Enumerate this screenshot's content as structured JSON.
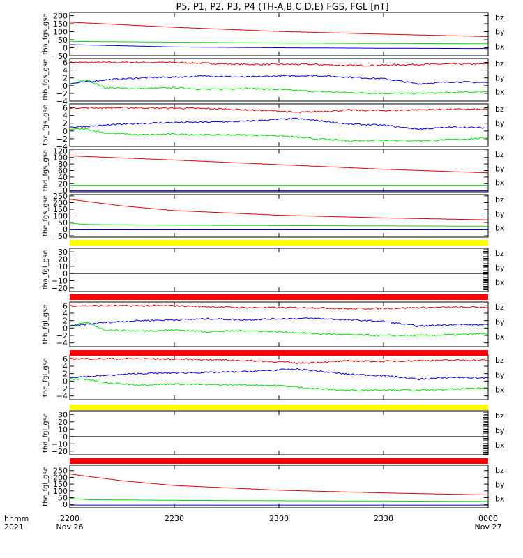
{
  "chart_data": {
    "type": "line",
    "title": "P5, P1, P2, P3, P4 (TH-A,B,C,D,E) FGS, FGL [nT]",
    "x_axis": {
      "title_lines": [
        "hhmm",
        "2021"
      ],
      "tick_labels": [
        "2200",
        "2230",
        "2300",
        "2330",
        "0000"
      ],
      "tick_sublabels": [
        "Nov 26",
        "",
        "",
        "",
        "Nov 27"
      ],
      "range": [
        "2021-11-26 22:00",
        "2021-11-27 00:00"
      ]
    },
    "legend_labels": [
      "bz",
      "by",
      "bx"
    ],
    "colors": {
      "bz": "#e00000",
      "by": "#00e000",
      "bx": "#0000e0",
      "yellow_bar": "#ffff00",
      "red_bar": "#ff0000"
    },
    "panels": [
      {
        "id": "tha_fgs_gse",
        "ylabel": "tha_fgs_gse",
        "ylim": [
          -50,
          220
        ],
        "yticks": [
          "−50",
          "0",
          "50",
          "100",
          "150",
          "200"
        ],
        "bar": "",
        "series": [
          {
            "name": "bz",
            "x": [
              0,
              30,
              60,
              90,
              120
            ],
            "y": [
              160,
              128,
              102,
              85,
              70
            ]
          },
          {
            "name": "by",
            "x": [
              0,
              30,
              60,
              90,
              120
            ],
            "y": [
              40,
              35,
              30,
              27,
              25
            ]
          },
          {
            "name": "bx",
            "x": [
              0,
              30,
              60,
              90,
              120
            ],
            "y": [
              20,
              5,
              0,
              -3,
              -5
            ]
          }
        ]
      },
      {
        "id": "thb_fgs_gse",
        "ylabel": "thb_fgs_gse",
        "ylim": [
          -4,
          7
        ],
        "yticks": [
          "−4",
          "−2",
          "0",
          "2",
          "4",
          "6"
        ],
        "bar": "",
        "series": [
          {
            "name": "bz",
            "x": [
              0,
              10,
              30,
              50,
              60,
              70,
              80,
              90,
              100,
              110,
              120
            ],
            "y": [
              6,
              6,
              6,
              5.5,
              5.5,
              5.5,
              5.2,
              5.3,
              5.5,
              5.6,
              5.6
            ]
          },
          {
            "name": "by",
            "x": [
              0,
              5,
              10,
              20,
              30,
              40,
              50,
              60,
              70,
              80,
              90,
              100,
              110,
              120
            ],
            "y": [
              0.5,
              1.5,
              -0.5,
              -0.8,
              -0.5,
              -1,
              -0.7,
              -1,
              -1.5,
              -1.8,
              -2,
              -2,
              -1.8,
              -1.5
            ]
          },
          {
            "name": "bx",
            "x": [
              0,
              5,
              10,
              20,
              30,
              40,
              50,
              60,
              70,
              80,
              90,
              100,
              110,
              120
            ],
            "y": [
              0.5,
              1,
              1.5,
              2,
              2.2,
              2.5,
              2.2,
              2.5,
              2.6,
              2.2,
              1.8,
              0.5,
              1,
              0.8
            ]
          }
        ]
      },
      {
        "id": "thc_fgs_gse",
        "ylabel": "thc_fgs_gse",
        "ylim": [
          -4,
          7
        ],
        "yticks": [
          "−4",
          "−2",
          "0",
          "2",
          "4",
          "6"
        ],
        "bar": "",
        "series": [
          {
            "name": "bz",
            "x": [
              0,
              20,
              40,
              60,
              65,
              70,
              80,
              90,
              100,
              110,
              120
            ],
            "y": [
              6,
              6,
              5.8,
              5.2,
              4.8,
              5,
              5.4,
              5.3,
              5.5,
              5.6,
              5.6
            ]
          },
          {
            "name": "by",
            "x": [
              0,
              5,
              10,
              20,
              30,
              40,
              50,
              60,
              70,
              80,
              90,
              100,
              110,
              120
            ],
            "y": [
              0.5,
              0.5,
              -0.5,
              -1,
              -0.8,
              -1,
              -1,
              -1.2,
              -2,
              -2.5,
              -2.3,
              -2.5,
              -2.2,
              -1.8
            ]
          },
          {
            "name": "bx",
            "x": [
              0,
              5,
              10,
              20,
              30,
              40,
              50,
              60,
              65,
              70,
              80,
              90,
              100,
              110,
              120
            ],
            "y": [
              1,
              1.2,
              1.5,
              2,
              2.2,
              2.3,
              2.5,
              3,
              3.2,
              2.8,
              1.8,
              1.5,
              0.5,
              1,
              0.8
            ]
          }
        ]
      },
      {
        "id": "thd_fgs_gse",
        "ylabel": "thd_fgs_gse",
        "ylim": [
          -5,
          125
        ],
        "yticks": [
          "0",
          "20",
          "40",
          "60",
          "80",
          "100",
          "120"
        ],
        "bar": "",
        "series": [
          {
            "name": "bz",
            "x": [
              0,
              30,
              60,
              90,
              120
            ],
            "y": [
              105,
              92,
              78,
              64,
              53
            ]
          },
          {
            "name": "by",
            "x": [
              0,
              30,
              60,
              90,
              120
            ],
            "y": [
              15,
              15,
              15,
              15,
              15
            ]
          },
          {
            "name": "bx",
            "x": [
              0,
              30,
              60,
              90,
              120
            ],
            "y": [
              -2,
              -2,
              -2,
              -2,
              -2
            ]
          }
        ]
      },
      {
        "id": "the_fgs_gse",
        "ylabel": "the_fgs_gse",
        "ylim": [
          -60,
          260
        ],
        "yticks": [
          "−50",
          "0",
          "50",
          "100",
          "150",
          "200",
          "250"
        ],
        "bar": "",
        "series": [
          {
            "name": "bz",
            "x": [
              0,
              15,
              30,
              60,
              90,
              120
            ],
            "y": [
              225,
              175,
              140,
              105,
              85,
              70
            ]
          },
          {
            "name": "by",
            "x": [
              0,
              5,
              30,
              60,
              90,
              120
            ],
            "y": [
              45,
              35,
              30,
              27,
              25,
              22
            ]
          },
          {
            "name": "bx",
            "x": [
              0,
              30,
              60,
              90,
              120
            ],
            "y": [
              -5,
              -5,
              -5,
              -5,
              -5
            ]
          }
        ]
      },
      {
        "id": "tha_fgl_gse",
        "ylabel": "tha_fgl_gse",
        "ylim": [
          -25,
          35
        ],
        "yticks": [
          "−20",
          "−10",
          "0",
          "10",
          "20",
          "30"
        ],
        "bar": "yellow",
        "series": []
      },
      {
        "id": "thb_fgl_gse",
        "ylabel": "thb_fgl_gse",
        "ylim": [
          -5,
          7
        ],
        "yticks": [
          "−4",
          "−2",
          "0",
          "2",
          "4",
          "6"
        ],
        "bar": "red",
        "series": [
          {
            "name": "bz",
            "x": [
              0,
              10,
              30,
              50,
              60,
              70,
              80,
              90,
              100,
              110,
              120
            ],
            "y": [
              6,
              6,
              6,
              5.5,
              5.5,
              5.5,
              5.2,
              5.3,
              5.5,
              5.6,
              5.6
            ]
          },
          {
            "name": "by",
            "x": [
              0,
              5,
              10,
              20,
              30,
              40,
              50,
              60,
              70,
              80,
              90,
              100,
              110,
              120
            ],
            "y": [
              0.5,
              1.5,
              -0.5,
              -0.8,
              -0.5,
              -1,
              -0.7,
              -1,
              -1.5,
              -1.8,
              -2,
              -2,
              -1.8,
              -1.5
            ]
          },
          {
            "name": "bx",
            "x": [
              0,
              5,
              10,
              20,
              30,
              40,
              50,
              60,
              70,
              80,
              90,
              100,
              110,
              120
            ],
            "y": [
              0.5,
              1,
              1.5,
              2,
              2.2,
              2.5,
              2.2,
              2.5,
              2.6,
              2.2,
              1.8,
              0.5,
              1,
              0.8
            ]
          }
        ]
      },
      {
        "id": "thc_fgl_gse",
        "ylabel": "thc_fgl_gse",
        "ylim": [
          -5,
          7
        ],
        "yticks": [
          "−4",
          "−2",
          "0",
          "2",
          "4",
          "6"
        ],
        "bar": "red",
        "series": [
          {
            "name": "bz",
            "x": [
              0,
              20,
              40,
              60,
              65,
              70,
              80,
              90,
              100,
              110,
              120
            ],
            "y": [
              6,
              6,
              5.8,
              5.2,
              4.8,
              5,
              5.4,
              5.3,
              5.5,
              5.6,
              5.6
            ]
          },
          {
            "name": "by",
            "x": [
              0,
              5,
              10,
              20,
              30,
              40,
              50,
              60,
              70,
              80,
              90,
              100,
              110,
              120
            ],
            "y": [
              0.5,
              0.5,
              -0.5,
              -1,
              -0.8,
              -1,
              -1,
              -1.2,
              -2,
              -2.5,
              -2.3,
              -2.5,
              -2.2,
              -1.8
            ]
          },
          {
            "name": "bx",
            "x": [
              0,
              5,
              10,
              20,
              30,
              40,
              50,
              60,
              65,
              70,
              80,
              90,
              100,
              110,
              120
            ],
            "y": [
              1,
              1.2,
              1.5,
              2,
              2.2,
              2.3,
              2.5,
              3,
              3.2,
              2.8,
              1.8,
              1.5,
              0.5,
              1,
              0.8
            ]
          }
        ]
      },
      {
        "id": "thd_fgl_gse",
        "ylabel": "thd_fgl_gse",
        "ylim": [
          -25,
          35
        ],
        "yticks": [
          "−20",
          "−10",
          "0",
          "10",
          "20",
          "30"
        ],
        "bar": "yellow",
        "series": []
      },
      {
        "id": "the_fgl_gse",
        "ylabel": "the_fgl_gse",
        "ylim": [
          -25,
          290
        ],
        "yticks": [
          "0",
          "50",
          "100",
          "150",
          "200",
          "250"
        ],
        "bar": "red",
        "series": [
          {
            "name": "bz",
            "x": [
              0,
              15,
              30,
              60,
              90,
              120
            ],
            "y": [
              225,
              175,
              140,
              105,
              85,
              70
            ]
          },
          {
            "name": "by",
            "x": [
              0,
              5,
              30,
              60,
              90,
              120
            ],
            "y": [
              45,
              35,
              30,
              27,
              25,
              22
            ]
          },
          {
            "name": "bx",
            "x": [
              0,
              30,
              60,
              90,
              120
            ],
            "y": [
              -5,
              -5,
              -5,
              -5,
              -5
            ]
          }
        ]
      }
    ]
  }
}
